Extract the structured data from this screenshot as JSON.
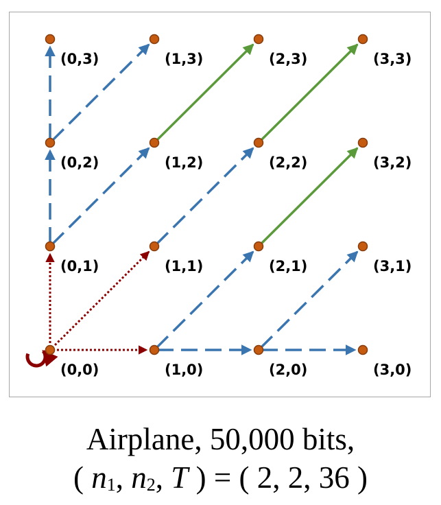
{
  "nodes": [
    {
      "label": "(0,0)",
      "i": 0,
      "j": 0
    },
    {
      "label": "(1,0)",
      "i": 1,
      "j": 0
    },
    {
      "label": "(2,0)",
      "i": 2,
      "j": 0
    },
    {
      "label": "(3,0)",
      "i": 3,
      "j": 0
    },
    {
      "label": "(0,1)",
      "i": 0,
      "j": 1
    },
    {
      "label": "(1,1)",
      "i": 1,
      "j": 1
    },
    {
      "label": "(2,1)",
      "i": 2,
      "j": 1
    },
    {
      "label": "(3,1)",
      "i": 3,
      "j": 1
    },
    {
      "label": "(0,2)",
      "i": 0,
      "j": 2
    },
    {
      "label": "(1,2)",
      "i": 1,
      "j": 2
    },
    {
      "label": "(2,2)",
      "i": 2,
      "j": 2
    },
    {
      "label": "(3,2)",
      "i": 3,
      "j": 2
    },
    {
      "label": "(0,3)",
      "i": 0,
      "j": 3
    },
    {
      "label": "(1,3)",
      "i": 1,
      "j": 3
    },
    {
      "label": "(2,3)",
      "i": 2,
      "j": 3
    },
    {
      "label": "(3,3)",
      "i": 3,
      "j": 3
    }
  ],
  "edges": [
    {
      "from": [
        0,
        0
      ],
      "to": [
        1,
        0
      ],
      "style": "red-dotted"
    },
    {
      "from": [
        0,
        0
      ],
      "to": [
        0,
        1
      ],
      "style": "red-dotted"
    },
    {
      "from": [
        0,
        0
      ],
      "to": [
        1,
        1
      ],
      "style": "red-dotted"
    },
    {
      "from": [
        0,
        1
      ],
      "to": [
        0,
        2
      ],
      "style": "blue-dashed"
    },
    {
      "from": [
        0,
        2
      ],
      "to": [
        0,
        3
      ],
      "style": "blue-dashed"
    },
    {
      "from": [
        1,
        0
      ],
      "to": [
        2,
        0
      ],
      "style": "blue-dashed"
    },
    {
      "from": [
        2,
        0
      ],
      "to": [
        3,
        0
      ],
      "style": "blue-dashed"
    },
    {
      "from": [
        0,
        1
      ],
      "to": [
        1,
        2
      ],
      "style": "blue-dashed"
    },
    {
      "from": [
        0,
        2
      ],
      "to": [
        1,
        3
      ],
      "style": "blue-dashed"
    },
    {
      "from": [
        1,
        0
      ],
      "to": [
        2,
        1
      ],
      "style": "blue-dashed"
    },
    {
      "from": [
        2,
        0
      ],
      "to": [
        3,
        1
      ],
      "style": "blue-dashed"
    },
    {
      "from": [
        1,
        1
      ],
      "to": [
        2,
        2
      ],
      "style": "blue-dashed"
    },
    {
      "from": [
        1,
        2
      ],
      "to": [
        2,
        3
      ],
      "style": "green-solid"
    },
    {
      "from": [
        2,
        2
      ],
      "to": [
        3,
        3
      ],
      "style": "green-solid"
    },
    {
      "from": [
        2,
        1
      ],
      "to": [
        3,
        2
      ],
      "style": "green-solid"
    }
  ],
  "self_loop_node": [
    0,
    0
  ],
  "colors": {
    "node_fill": "#c55a11",
    "node_stroke": "#843c0c",
    "red_dotted": "#8b0000",
    "blue_dashed": "#3a75b0",
    "green_solid": "#5b9a3b",
    "frame_border": "#a6a6a6"
  },
  "caption": {
    "line1": "Airplane, 50,000 bits,",
    "open": "( ",
    "n": "n",
    "sub1": "1",
    "sep1": ", ",
    "sub2": "2",
    "sep2": ", ",
    "T": "T",
    "equals": " ) = ( ",
    "values": "2, 2, 36",
    "close": " )"
  }
}
